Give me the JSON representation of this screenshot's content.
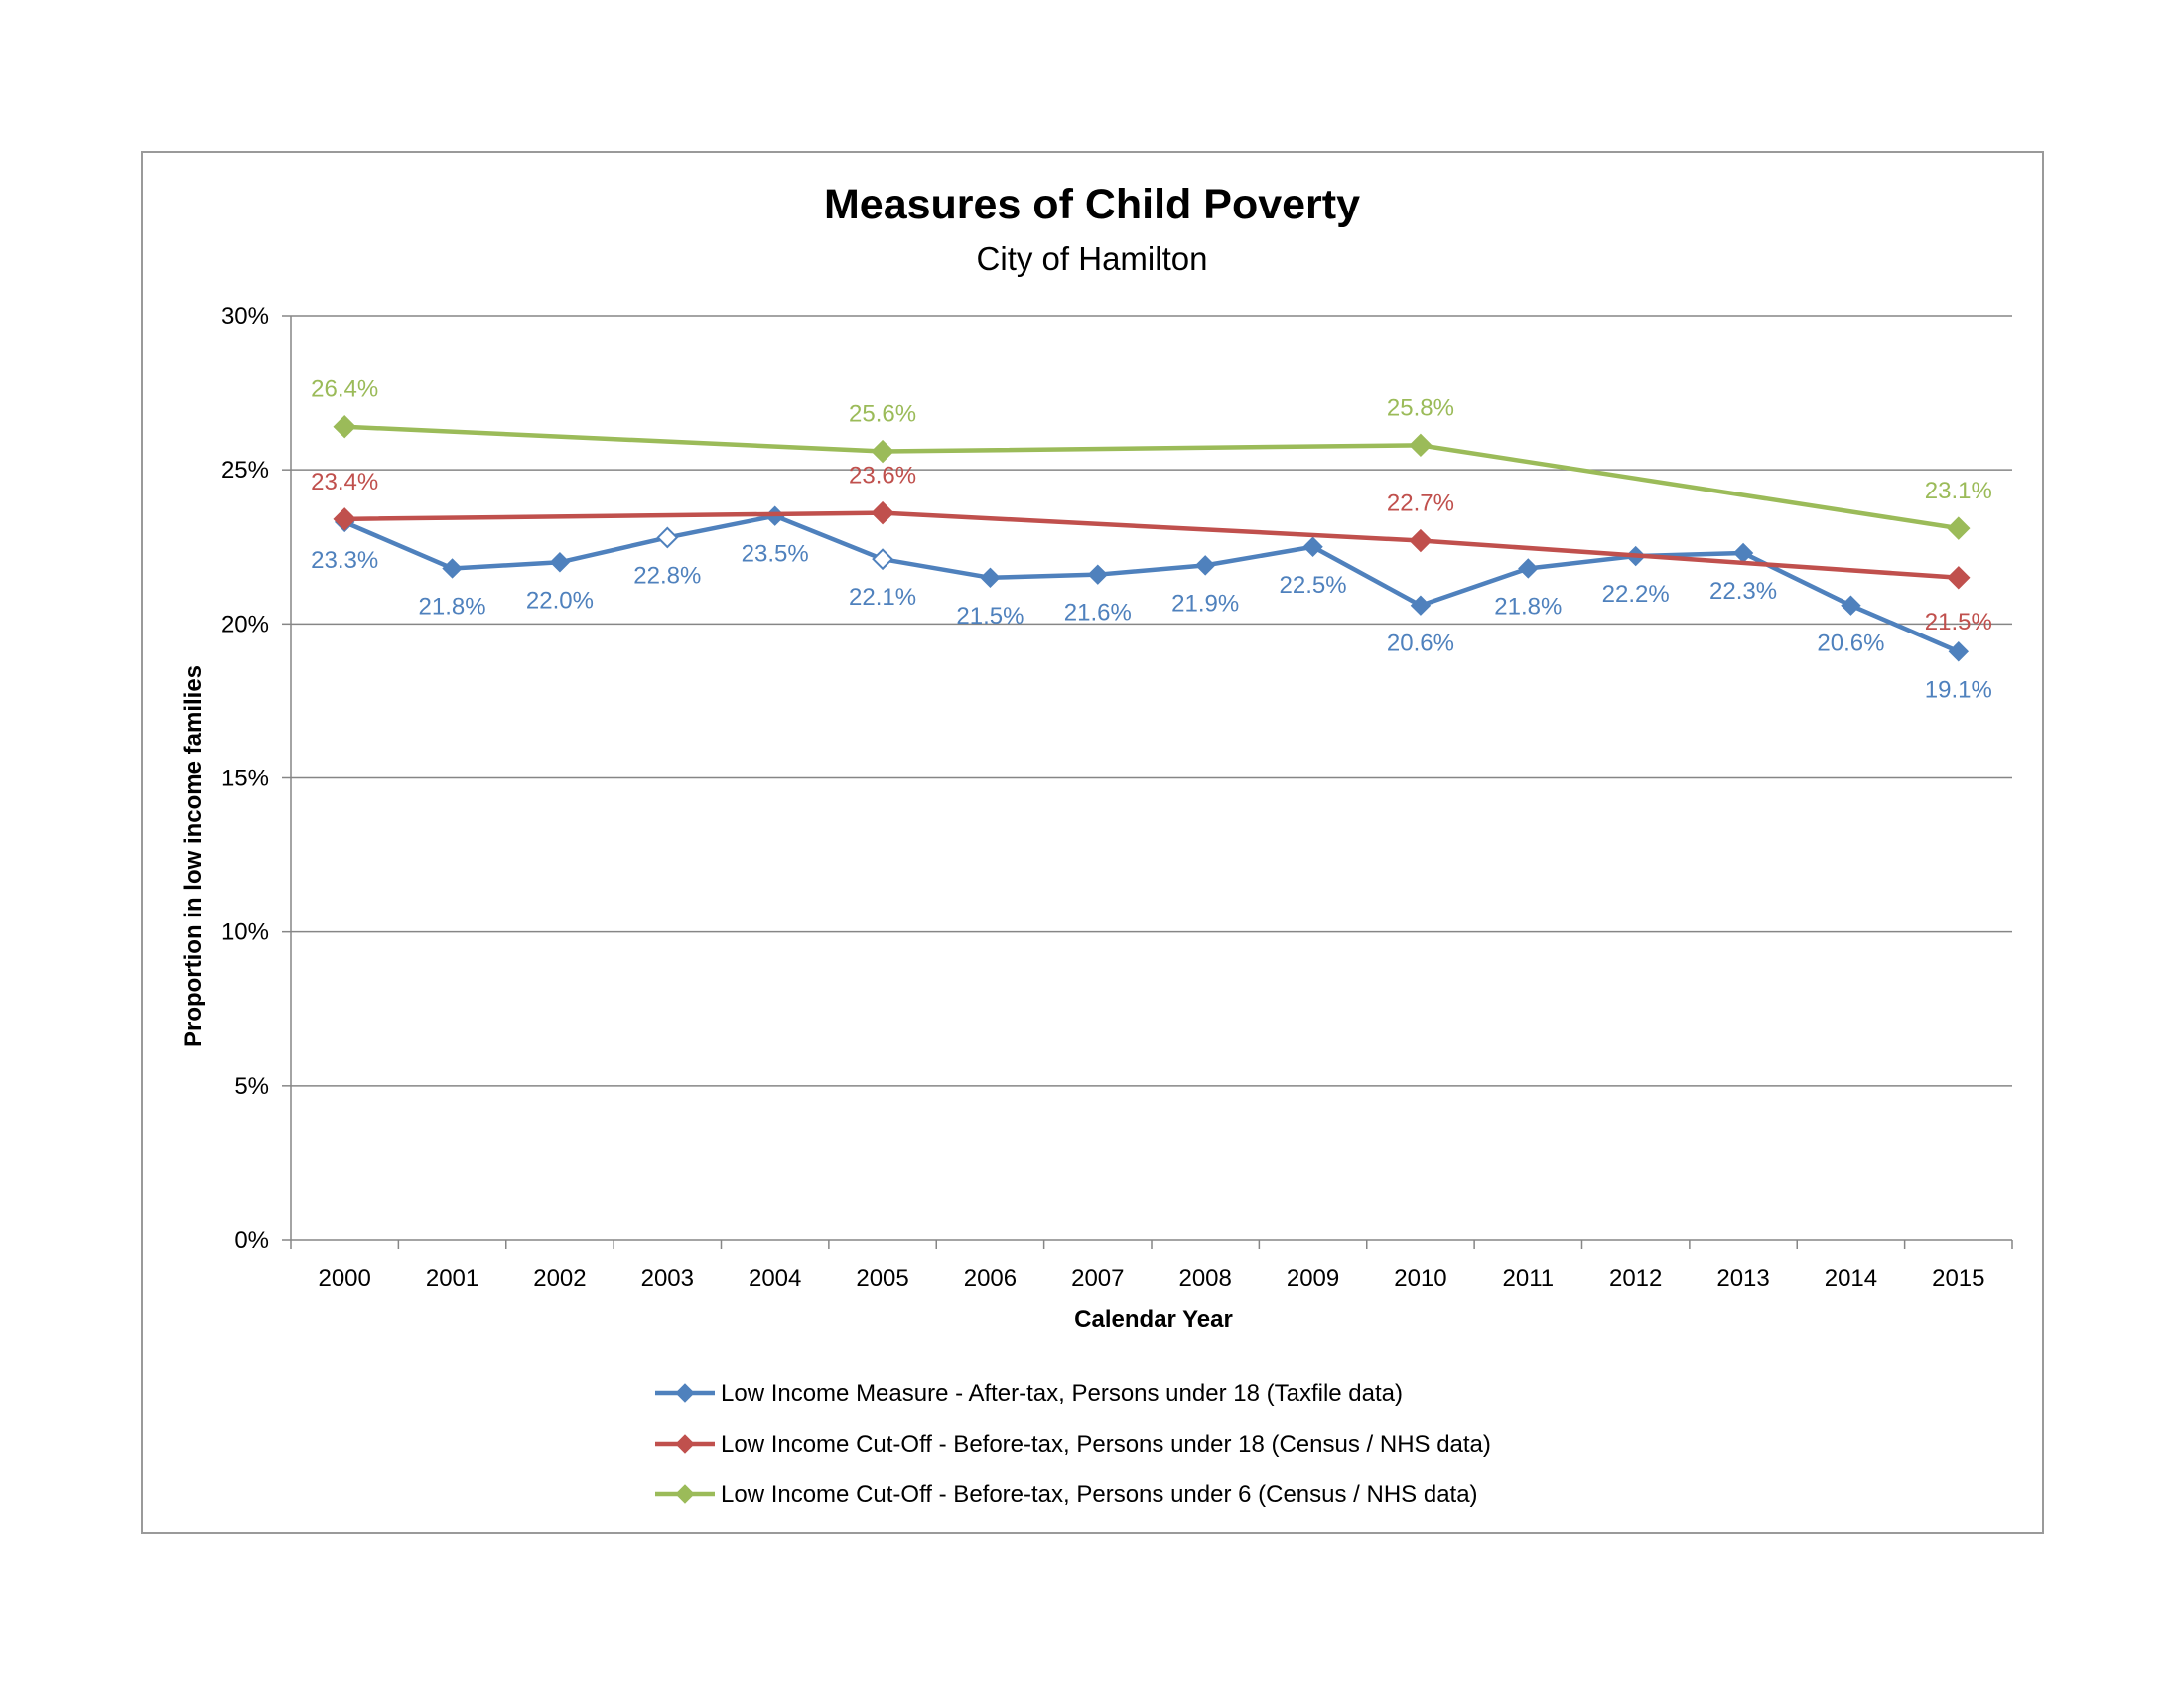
{
  "chart_data": {
    "type": "line",
    "title": "Measures of Child Poverty",
    "subtitle": "City of Hamilton",
    "xlabel": "Calendar Year",
    "ylabel": "Proportion in low income families",
    "ylim": [
      0,
      30
    ],
    "yticks": [
      0,
      5,
      10,
      15,
      20,
      25,
      30
    ],
    "ytick_labels": [
      "0%",
      "5%",
      "10%",
      "15%",
      "20%",
      "25%",
      "30%"
    ],
    "grid": "horizontal",
    "legend_position": "bottom",
    "categories": [
      "2000",
      "2001",
      "2002",
      "2003",
      "2004",
      "2005",
      "2006",
      "2007",
      "2008",
      "2009",
      "2010",
      "2011",
      "2012",
      "2013",
      "2014",
      "2015"
    ],
    "series": [
      {
        "name": "Low Income Measure - After-tax, Persons under 18 (Taxfile data)",
        "color": "#4f81bd",
        "values": [
          23.3,
          21.8,
          22.0,
          22.8,
          23.5,
          22.1,
          21.5,
          21.6,
          21.9,
          22.5,
          20.6,
          21.8,
          22.2,
          22.3,
          20.6,
          19.1
        ],
        "labels": [
          "23.3%",
          "21.8%",
          "22.0%",
          "22.8%",
          "23.5%",
          "22.1%",
          "21.5%",
          "21.6%",
          "21.9%",
          "22.5%",
          "20.6%",
          "21.8%",
          "22.2%",
          "22.3%",
          "20.6%",
          "19.1%"
        ],
        "hollow_markers": [
          "2003",
          "2005"
        ]
      },
      {
        "name": "Low Income Cut-Off - Before-tax, Persons under 18 (Census / NHS data)",
        "color": "#c0504d",
        "x": [
          "2000",
          "2005",
          "2010",
          "2015"
        ],
        "values": [
          23.4,
          23.6,
          22.7,
          21.5
        ],
        "labels": [
          "23.4%",
          "23.6%",
          "22.7%",
          "21.5%"
        ]
      },
      {
        "name": "Low Income Cut-Off - Before-tax, Persons under 6 (Census / NHS data)",
        "color": "#9bbb59",
        "x": [
          "2000",
          "2005",
          "2010",
          "2015"
        ],
        "values": [
          26.4,
          25.6,
          25.8,
          23.1
        ],
        "labels": [
          "26.4%",
          "25.6%",
          "25.8%",
          "23.1%"
        ]
      }
    ]
  }
}
